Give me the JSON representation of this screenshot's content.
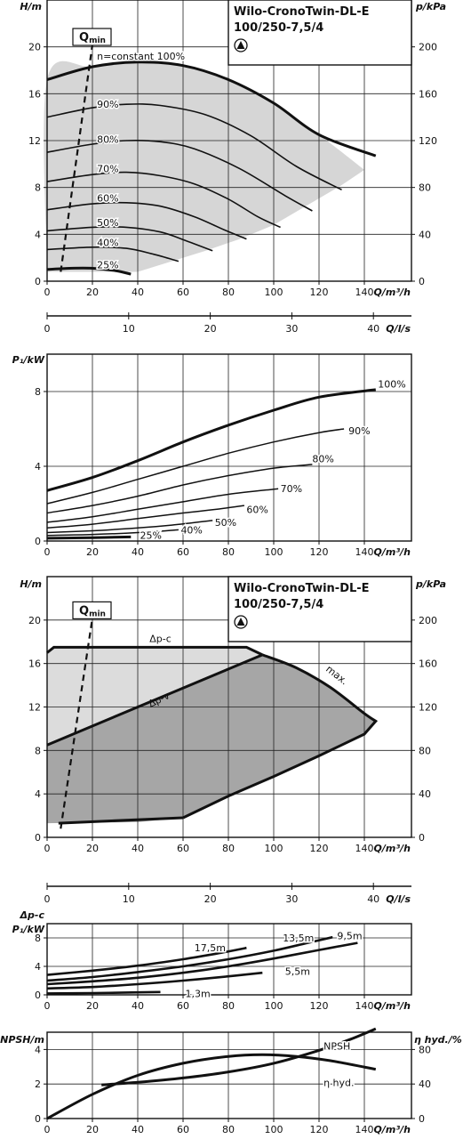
{
  "chart_data": [
    {
      "id": "hq",
      "type": "line",
      "title": "Wilo-CronoTwin-DL-E",
      "subtitle": "100/250-7,5/4",
      "xlabel": "Q/m³/h",
      "ylabel": "H/m",
      "y2label": "p/kPa",
      "xlim": [
        0,
        150
      ],
      "ylim": [
        0,
        24
      ],
      "y2lim": [
        0,
        240
      ],
      "xticks": [
        0,
        20,
        40,
        60,
        80,
        100,
        120,
        140
      ],
      "yticks": [
        0,
        4,
        8,
        12,
        16,
        20
      ],
      "y2ticks": [
        0,
        40,
        80,
        120,
        160,
        200
      ],
      "grid": true,
      "qmin_label": "Q",
      "qmin_sub": "min",
      "qmin_line": [
        [
          6,
          0.8
        ],
        [
          20,
          20.2
        ]
      ],
      "envelope": [
        [
          0,
          0.8
        ],
        [
          0,
          17.2
        ],
        [
          20,
          18.3
        ],
        [
          40,
          18.7
        ],
        [
          60,
          18.4
        ],
        [
          80,
          17.2
        ],
        [
          100,
          15.2
        ],
        [
          120,
          12.5
        ],
        [
          140,
          9.5
        ],
        [
          140,
          9.5
        ],
        [
          130,
          8.2
        ],
        [
          115,
          6.5
        ],
        [
          100,
          4.8
        ],
        [
          85,
          3.6
        ],
        [
          70,
          2.6
        ],
        [
          55,
          1.7
        ],
        [
          40,
          0.8
        ],
        [
          0,
          0.8
        ]
      ],
      "series": [
        {
          "name": "n=constant 100%",
          "bold": true,
          "label_at": [
            22,
            19.2
          ],
          "points": [
            [
              0,
              17.2
            ],
            [
              20,
              18.3
            ],
            [
              40,
              18.7
            ],
            [
              60,
              18.4
            ],
            [
              80,
              17.2
            ],
            [
              100,
              15.2
            ],
            [
              120,
              12.5
            ],
            [
              145,
              10.7
            ]
          ]
        },
        {
          "name": "90%",
          "label_at": [
            22,
            15.1
          ],
          "points": [
            [
              0,
              14.0
            ],
            [
              20,
              14.8
            ],
            [
              35,
              15.1
            ],
            [
              50,
              15.0
            ],
            [
              70,
              14.2
            ],
            [
              90,
              12.4
            ],
            [
              110,
              9.8
            ],
            [
              130,
              7.8
            ]
          ]
        },
        {
          "name": "80%",
          "label_at": [
            22,
            12.1
          ],
          "points": [
            [
              0,
              11.0
            ],
            [
              20,
              11.7
            ],
            [
              35,
              12.0
            ],
            [
              50,
              11.9
            ],
            [
              65,
              11.3
            ],
            [
              85,
              9.6
            ],
            [
              105,
              7.3
            ],
            [
              117,
              6.0
            ]
          ]
        },
        {
          "name": "70%",
          "label_at": [
            22,
            9.6
          ],
          "points": [
            [
              0,
              8.5
            ],
            [
              20,
              9.1
            ],
            [
              35,
              9.3
            ],
            [
              50,
              9.0
            ],
            [
              65,
              8.3
            ],
            [
              80,
              7.0
            ],
            [
              93,
              5.5
            ],
            [
              103,
              4.6
            ]
          ]
        },
        {
          "name": "60%",
          "label_at": [
            22,
            7.1
          ],
          "points": [
            [
              0,
              6.1
            ],
            [
              20,
              6.6
            ],
            [
              35,
              6.7
            ],
            [
              50,
              6.4
            ],
            [
              65,
              5.5
            ],
            [
              78,
              4.4
            ],
            [
              88,
              3.6
            ]
          ]
        },
        {
          "name": "50%",
          "label_at": [
            22,
            5.0
          ],
          "points": [
            [
              0,
              4.3
            ],
            [
              20,
              4.6
            ],
            [
              35,
              4.6
            ],
            [
              50,
              4.2
            ],
            [
              62,
              3.4
            ],
            [
              73,
              2.6
            ]
          ]
        },
        {
          "name": "40%",
          "label_at": [
            22,
            3.3
          ],
          "points": [
            [
              0,
              2.7
            ],
            [
              20,
              2.9
            ],
            [
              35,
              2.8
            ],
            [
              47,
              2.3
            ],
            [
              58,
              1.7
            ]
          ]
        },
        {
          "name": "25%",
          "bold": true,
          "label_at": [
            22,
            1.4
          ],
          "points": [
            [
              0,
              1.0
            ],
            [
              10,
              1.1
            ],
            [
              20,
              1.1
            ],
            [
              30,
              0.9
            ],
            [
              37,
              0.6
            ]
          ]
        }
      ],
      "secondary_axis": {
        "label": "Q/l/s",
        "xlim": [
          0,
          41.67
        ],
        "ticks": [
          0,
          10,
          20,
          30,
          40
        ]
      }
    },
    {
      "id": "p1",
      "type": "line",
      "xlabel": "Q/m³/h",
      "ylabel": "P₁/kW",
      "xlim": [
        0,
        150
      ],
      "ylim": [
        0,
        10
      ],
      "xticks": [
        0,
        20,
        40,
        60,
        80,
        100,
        120,
        140
      ],
      "yticks": [
        0,
        4,
        8
      ],
      "grid": true,
      "series": [
        {
          "name": "100%",
          "bold": true,
          "label_at": [
            146,
            8.4
          ],
          "points": [
            [
              0,
              2.7
            ],
            [
              20,
              3.4
            ],
            [
              40,
              4.3
            ],
            [
              60,
              5.3
            ],
            [
              80,
              6.2
            ],
            [
              100,
              7.0
            ],
            [
              120,
              7.7
            ],
            [
              145,
              8.1
            ]
          ]
        },
        {
          "name": "90%",
          "label_at": [
            133,
            5.9
          ],
          "points": [
            [
              0,
              2.0
            ],
            [
              20,
              2.6
            ],
            [
              40,
              3.3
            ],
            [
              60,
              4.0
            ],
            [
              80,
              4.7
            ],
            [
              100,
              5.3
            ],
            [
              120,
              5.8
            ],
            [
              131,
              6.0
            ]
          ]
        },
        {
          "name": "80%",
          "label_at": [
            117,
            4.4
          ],
          "points": [
            [
              0,
              1.5
            ],
            [
              20,
              1.9
            ],
            [
              40,
              2.4
            ],
            [
              60,
              3.0
            ],
            [
              80,
              3.5
            ],
            [
              100,
              3.9
            ],
            [
              117,
              4.1
            ]
          ]
        },
        {
          "name": "70%",
          "label_at": [
            103,
            2.8
          ],
          "points": [
            [
              0,
              1.0
            ],
            [
              20,
              1.3
            ],
            [
              40,
              1.7
            ],
            [
              60,
              2.1
            ],
            [
              80,
              2.5
            ],
            [
              102,
              2.8
            ]
          ]
        },
        {
          "name": "60%",
          "label_at": [
            88,
            1.7
          ],
          "points": [
            [
              0,
              0.7
            ],
            [
              20,
              0.9
            ],
            [
              40,
              1.2
            ],
            [
              60,
              1.5
            ],
            [
              75,
              1.7
            ],
            [
              87,
              1.9
            ]
          ]
        },
        {
          "name": "50%",
          "label_at": [
            74,
            1.0
          ],
          "points": [
            [
              0,
              0.45
            ],
            [
              20,
              0.55
            ],
            [
              40,
              0.7
            ],
            [
              55,
              0.85
            ],
            [
              73,
              1.1
            ]
          ]
        },
        {
          "name": "40%",
          "label_at": [
            59,
            0.6
          ],
          "points": [
            [
              0,
              0.3
            ],
            [
              20,
              0.35
            ],
            [
              40,
              0.45
            ],
            [
              58,
              0.6
            ]
          ]
        },
        {
          "name": "25%",
          "bold": true,
          "label_at": [
            41,
            0.3
          ],
          "points": [
            [
              0,
              0.15
            ],
            [
              20,
              0.18
            ],
            [
              37,
              0.22
            ]
          ]
        }
      ]
    },
    {
      "id": "hq_modes",
      "type": "area",
      "title": "Wilo-CronoTwin-DL-E",
      "subtitle": "100/250-7,5/4",
      "xlabel": "Q/m³/h",
      "ylabel": "H/m",
      "y2label": "p/kPa",
      "xlim": [
        0,
        150
      ],
      "ylim": [
        0,
        24
      ],
      "y2lim": [
        0,
        240
      ],
      "xticks": [
        0,
        20,
        40,
        60,
        80,
        100,
        120,
        140
      ],
      "yticks": [
        0,
        4,
        8,
        12,
        16,
        20
      ],
      "y2ticks": [
        0,
        40,
        80,
        120,
        160,
        200
      ],
      "grid": true,
      "qmin_label": "Q",
      "qmin_sub": "min",
      "qmin_line": [
        [
          6,
          0.8
        ],
        [
          20,
          20.2
        ]
      ],
      "dpc_region": [
        [
          0,
          8.5
        ],
        [
          0,
          17.0
        ],
        [
          3,
          17.5
        ],
        [
          88,
          17.5
        ],
        [
          95,
          16.8
        ],
        [
          0,
          8.5
        ]
      ],
      "dpv_region": [
        [
          0,
          1.3
        ],
        [
          0,
          8.5
        ],
        [
          95,
          16.8
        ],
        [
          110,
          15.6
        ],
        [
          125,
          13.8
        ],
        [
          140,
          11.4
        ],
        [
          145,
          10.7
        ],
        [
          140,
          9.5
        ],
        [
          120,
          7.5
        ],
        [
          100,
          5.6
        ],
        [
          80,
          3.8
        ],
        [
          60,
          1.8
        ],
        [
          40,
          1.4
        ],
        [
          0,
          1.3
        ]
      ],
      "labels": {
        "dpc": "Δp-c",
        "dpv": "Δp-v",
        "max": "max."
      },
      "label_pos": {
        "dpc": [
          50,
          18.0
        ],
        "dpv": [
          50,
          12.4
        ],
        "max": [
          127,
          14.7
        ]
      },
      "secondary_axis": {
        "label": "Q/l/s",
        "xlim": [
          0,
          41.67
        ],
        "ticks": [
          0,
          10,
          20,
          30,
          40
        ]
      }
    },
    {
      "id": "p1_dpc",
      "type": "line",
      "xlabel": "Q/m³/h",
      "ylabel_top": "Δp-c",
      "ylabel": "P₁/kW",
      "xlim": [
        0,
        150
      ],
      "ylim": [
        0,
        10
      ],
      "xticks": [
        0,
        20,
        40,
        60,
        80,
        100,
        120,
        140
      ],
      "yticks": [
        0,
        4,
        8
      ],
      "grid": true,
      "series": [
        {
          "name": "17,5m",
          "label_at": [
            65,
            6.6
          ],
          "points": [
            [
              0,
              2.8
            ],
            [
              20,
              3.4
            ],
            [
              40,
              4.1
            ],
            [
              60,
              5.0
            ],
            [
              75,
              5.8
            ],
            [
              88,
              6.6
            ]
          ]
        },
        {
          "name": "13,5m",
          "label_at": [
            104,
            8.0
          ],
          "points": [
            [
              0,
              2.0
            ],
            [
              20,
              2.5
            ],
            [
              40,
              3.2
            ],
            [
              60,
              4.0
            ],
            [
              80,
              5.0
            ],
            [
              100,
              6.2
            ],
            [
              115,
              7.3
            ],
            [
              126,
              8.1
            ]
          ]
        },
        {
          "name": "9,5m",
          "label_at": [
            128,
            8.3
          ],
          "points": [
            [
              0,
              1.5
            ],
            [
              20,
              1.9
            ],
            [
              40,
              2.4
            ],
            [
              60,
              3.1
            ],
            [
              80,
              4.0
            ],
            [
              100,
              5.1
            ],
            [
              120,
              6.3
            ],
            [
              137,
              7.3
            ]
          ]
        },
        {
          "name": "5,5m",
          "label_at": [
            105,
            3.3
          ],
          "points": [
            [
              0,
              0.9
            ],
            [
              20,
              1.1
            ],
            [
              40,
              1.5
            ],
            [
              60,
              2.0
            ],
            [
              80,
              2.6
            ],
            [
              95,
              3.1
            ]
          ]
        },
        {
          "name": "1,3m",
          "label_at": [
            61,
            0.2
          ],
          "points": [
            [
              0,
              0.2
            ],
            [
              20,
              0.25
            ],
            [
              40,
              0.35
            ],
            [
              50,
              0.4
            ]
          ]
        }
      ]
    },
    {
      "id": "npsh_eta",
      "type": "line",
      "xlabel": "Q/m³/h",
      "ylabel": "NPSH/m",
      "y2label": "η hyd./%",
      "xlim": [
        0,
        150
      ],
      "ylim": [
        0,
        5
      ],
      "y2lim": [
        0,
        100
      ],
      "xticks": [
        0,
        20,
        40,
        60,
        80,
        100,
        120,
        140
      ],
      "yticks": [
        0,
        2,
        4
      ],
      "y2ticks": [
        0,
        40,
        80
      ],
      "grid": true,
      "series": [
        {
          "name": "NPSH",
          "label_at": [
            122,
            4.2
          ],
          "axis": "left",
          "points": [
            [
              24,
              1.95
            ],
            [
              40,
              2.1
            ],
            [
              60,
              2.35
            ],
            [
              80,
              2.7
            ],
            [
              100,
              3.2
            ],
            [
              120,
              3.95
            ],
            [
              134,
              4.6
            ],
            [
              145,
              5.2
            ]
          ]
        },
        {
          "name": "η hyd.",
          "label_at": [
            122,
            2.1
          ],
          "axis": "right",
          "points": [
            [
              0,
              0
            ],
            [
              20,
              28
            ],
            [
              40,
              50
            ],
            [
              60,
              64
            ],
            [
              80,
              72
            ],
            [
              95,
              74
            ],
            [
              110,
              72
            ],
            [
              125,
              67
            ],
            [
              145,
              57
            ]
          ]
        }
      ]
    }
  ]
}
